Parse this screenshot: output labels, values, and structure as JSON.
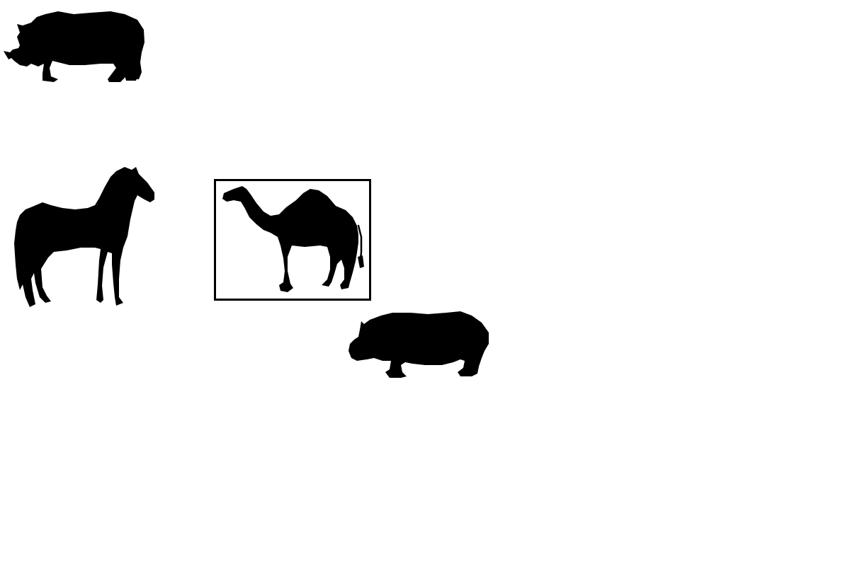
{
  "canvas": {
    "background": "#ffffff",
    "silhouette_color": "#000000"
  },
  "animals": [
    {
      "id": "rhino",
      "icon": "rhino-silhouette-icon",
      "selected": false
    },
    {
      "id": "horse",
      "icon": "horse-silhouette-icon",
      "selected": false
    },
    {
      "id": "camel",
      "icon": "camel-silhouette-icon",
      "selected": true
    },
    {
      "id": "hippo",
      "icon": "hippo-silhouette-icon",
      "selected": false
    }
  ],
  "selection": {
    "target": "camel",
    "border_color": "#000000"
  }
}
